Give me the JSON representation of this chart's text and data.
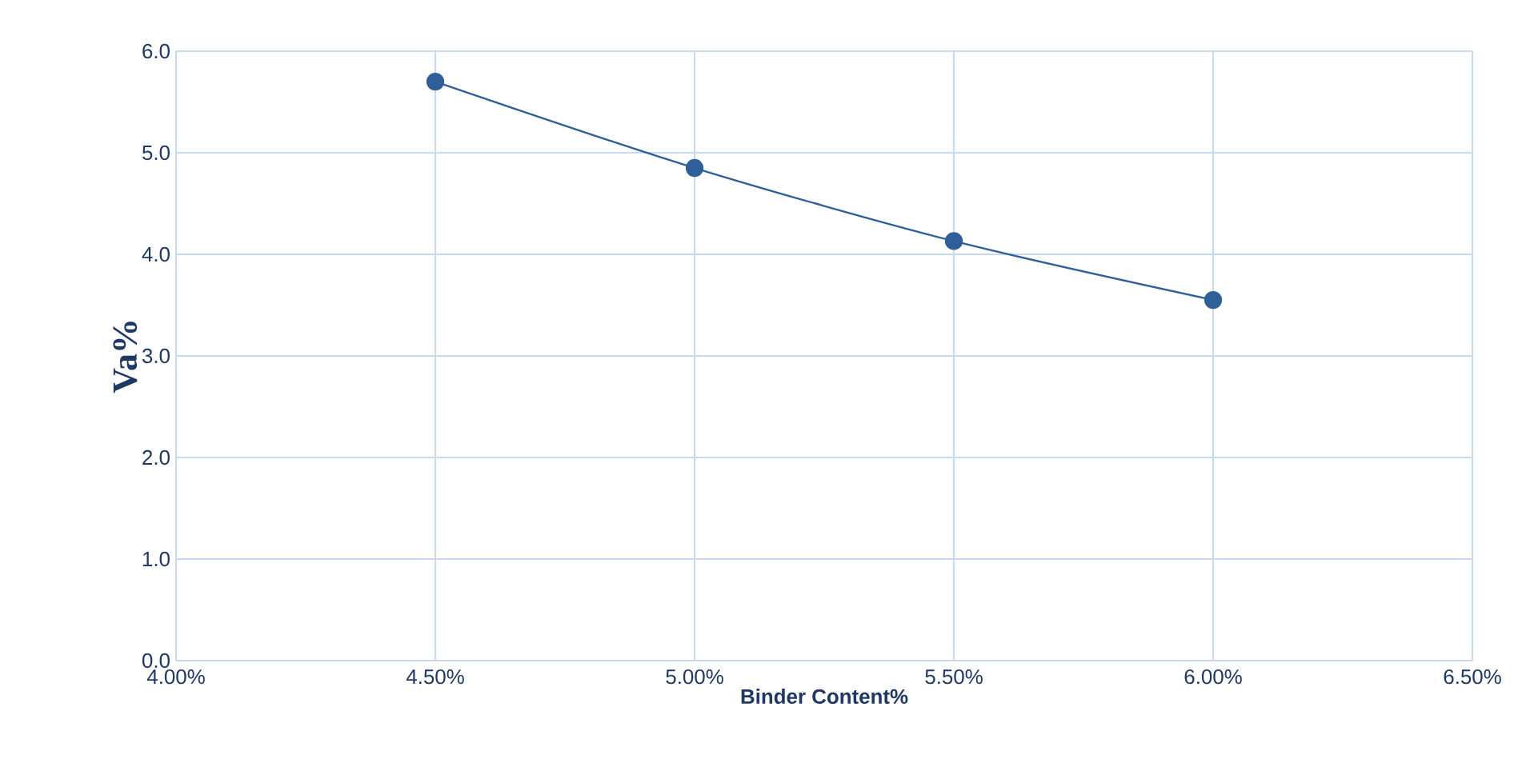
{
  "chart_data": {
    "type": "line",
    "xlabel": "Binder Content%",
    "ylabel": "Va%",
    "x": [
      4.5,
      5.0,
      5.5,
      6.0
    ],
    "series": [
      {
        "color": "#2f5f98",
        "values": [
          5.7,
          4.85,
          4.13,
          3.55
        ]
      }
    ],
    "xlim": [
      4.0,
      6.5
    ],
    "xticks": [
      {
        "value": 4.0,
        "label": "4.00%"
      },
      {
        "value": 4.5,
        "label": "4.50%"
      },
      {
        "value": 5.0,
        "label": "5.00%"
      },
      {
        "value": 5.5,
        "label": "5.50%"
      },
      {
        "value": 6.0,
        "label": "6.00%"
      },
      {
        "value": 6.5,
        "label": "6.50%"
      }
    ],
    "ylim": [
      0,
      6
    ],
    "yticks": [
      {
        "value": 0,
        "label": "0.0"
      },
      {
        "value": 1,
        "label": "1.0"
      },
      {
        "value": 2,
        "label": "2.0"
      },
      {
        "value": 3,
        "label": "3.0"
      },
      {
        "value": 4,
        "label": "4.0"
      },
      {
        "value": 5,
        "label": "5.0"
      },
      {
        "value": 6,
        "label": "6.0"
      }
    ],
    "grid": true,
    "marker": "circle",
    "line_style": "solid"
  }
}
